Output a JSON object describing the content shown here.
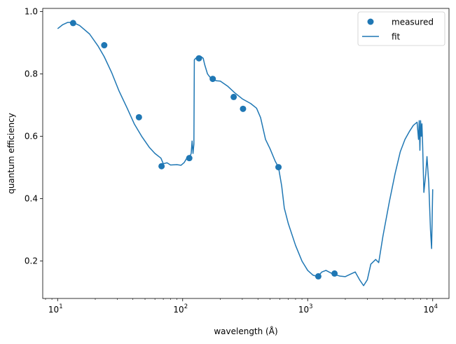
{
  "chart_data": {
    "type": "scatter",
    "xlabel": "wavelength (Å)",
    "ylabel": "quantum efficiency",
    "xscale": "log",
    "xlim": [
      7.6,
      13500
    ],
    "ylim": [
      0.08,
      1.01
    ],
    "grid": false,
    "legend_placement": "top-right",
    "x_ticks": [
      {
        "value": 10,
        "base": "10",
        "exp": "1"
      },
      {
        "value": 100,
        "base": "10",
        "exp": "2"
      },
      {
        "value": 1000,
        "base": "10",
        "exp": "3"
      },
      {
        "value": 10000,
        "base": "10",
        "exp": "4"
      }
    ],
    "y_ticks": [
      {
        "value": 0.2,
        "label": "0.2"
      },
      {
        "value": 0.4,
        "label": "0.4"
      },
      {
        "value": 0.6,
        "label": "0.6"
      },
      {
        "value": 0.8,
        "label": "0.8"
      },
      {
        "value": 1.0,
        "label": "1.0"
      }
    ],
    "color": "#1f77b4",
    "series": [
      {
        "name": "measured",
        "kind": "points",
        "points": [
          [
            13.3,
            0.963
          ],
          [
            23.6,
            0.892
          ],
          [
            44.7,
            0.661
          ],
          [
            67.8,
            0.504
          ],
          [
            113,
            0.53
          ],
          [
            135,
            0.85
          ],
          [
            174,
            0.784
          ],
          [
            256,
            0.726
          ],
          [
            304,
            0.688
          ],
          [
            584,
            0.501
          ],
          [
            1216,
            0.151
          ],
          [
            1640,
            0.16
          ]
        ]
      },
      {
        "name": "fit",
        "kind": "line",
        "points": [
          [
            10,
            0.945
          ],
          [
            11,
            0.958
          ],
          [
            12,
            0.965
          ],
          [
            13.3,
            0.965
          ],
          [
            15,
            0.955
          ],
          [
            18,
            0.928
          ],
          [
            21,
            0.89
          ],
          [
            23.6,
            0.855
          ],
          [
            27,
            0.805
          ],
          [
            31,
            0.745
          ],
          [
            36,
            0.69
          ],
          [
            41,
            0.64
          ],
          [
            47,
            0.6
          ],
          [
            54,
            0.565
          ],
          [
            60,
            0.545
          ],
          [
            67,
            0.53
          ],
          [
            70,
            0.512
          ],
          [
            75,
            0.515
          ],
          [
            80,
            0.508
          ],
          [
            90,
            0.509
          ],
          [
            97,
            0.507
          ],
          [
            103,
            0.516
          ],
          [
            108,
            0.53
          ],
          [
            113,
            0.53
          ],
          [
            117,
            0.545
          ],
          [
            119,
            0.585
          ],
          [
            121,
            0.545
          ],
          [
            123,
            0.575
          ],
          [
            124,
            0.845
          ],
          [
            127,
            0.85
          ],
          [
            135,
            0.852
          ],
          [
            140,
            0.856
          ],
          [
            146,
            0.85
          ],
          [
            150,
            0.83
          ],
          [
            158,
            0.8
          ],
          [
            165,
            0.79
          ],
          [
            174,
            0.786
          ],
          [
            185,
            0.778
          ],
          [
            200,
            0.777
          ],
          [
            230,
            0.76
          ],
          [
            260,
            0.74
          ],
          [
            300,
            0.72
          ],
          [
            350,
            0.705
          ],
          [
            390,
            0.69
          ],
          [
            420,
            0.66
          ],
          [
            460,
            0.59
          ],
          [
            500,
            0.56
          ],
          [
            550,
            0.52
          ],
          [
            584,
            0.501
          ],
          [
            620,
            0.44
          ],
          [
            650,
            0.37
          ],
          [
            700,
            0.32
          ],
          [
            800,
            0.25
          ],
          [
            900,
            0.2
          ],
          [
            1000,
            0.17
          ],
          [
            1100,
            0.155
          ],
          [
            1200,
            0.15
          ],
          [
            1300,
            0.165
          ],
          [
            1400,
            0.17
          ],
          [
            1600,
            0.158
          ],
          [
            1800,
            0.152
          ],
          [
            2000,
            0.15
          ],
          [
            2200,
            0.158
          ],
          [
            2400,
            0.165
          ],
          [
            2600,
            0.14
          ],
          [
            2800,
            0.121
          ],
          [
            3000,
            0.14
          ],
          [
            3200,
            0.19
          ],
          [
            3500,
            0.205
          ],
          [
            3700,
            0.195
          ],
          [
            4000,
            0.28
          ],
          [
            4500,
            0.39
          ],
          [
            5000,
            0.48
          ],
          [
            5500,
            0.55
          ],
          [
            6000,
            0.59
          ],
          [
            6500,
            0.615
          ],
          [
            7000,
            0.635
          ],
          [
            7500,
            0.645
          ],
          [
            7700,
            0.59
          ],
          [
            7800,
            0.65
          ],
          [
            7900,
            0.555
          ],
          [
            8000,
            0.65
          ],
          [
            8100,
            0.6
          ],
          [
            8200,
            0.64
          ],
          [
            8300,
            0.58
          ],
          [
            8500,
            0.42
          ],
          [
            8800,
            0.48
          ],
          [
            9000,
            0.535
          ],
          [
            9300,
            0.45
          ],
          [
            9600,
            0.3
          ],
          [
            9800,
            0.24
          ],
          [
            10000,
            0.43
          ]
        ]
      }
    ]
  }
}
